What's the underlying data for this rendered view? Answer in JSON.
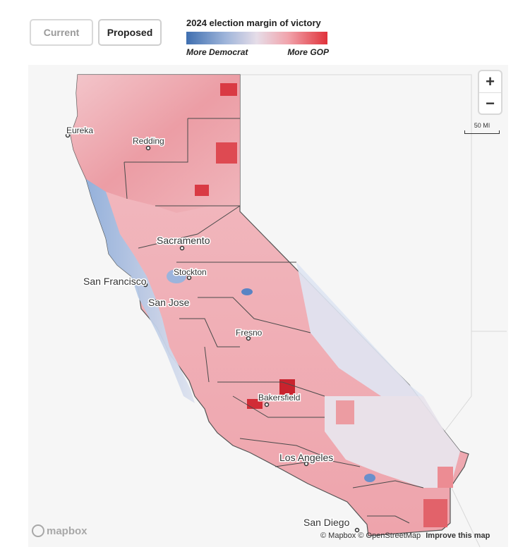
{
  "toggles": {
    "current": "Current",
    "proposed": "Proposed"
  },
  "legend": {
    "title": "2024 election margin of victory",
    "left_label": "More Democrat",
    "right_label": "More GOP",
    "colors": {
      "dem": "#3f6fb0",
      "neutral": "#e6dde8",
      "gop": "#e0323b"
    }
  },
  "map": {
    "zoom_in": "+",
    "zoom_out": "−",
    "scale_label": "50 MI",
    "cities": {
      "eureka": "Eureka",
      "redding": "Redding",
      "sacramento": "Sacramento",
      "stockton": "Stockton",
      "san_francisco": "San Francisco",
      "san_jose": "San Jose",
      "fresno": "Fresno",
      "bakersfield": "Bakersfield",
      "los_angeles": "Los Angeles",
      "san_diego": "San Diego"
    },
    "logo": "mapbox",
    "attribution": "© Mapbox © OpenStreetMap",
    "improve": "Improve this map"
  }
}
